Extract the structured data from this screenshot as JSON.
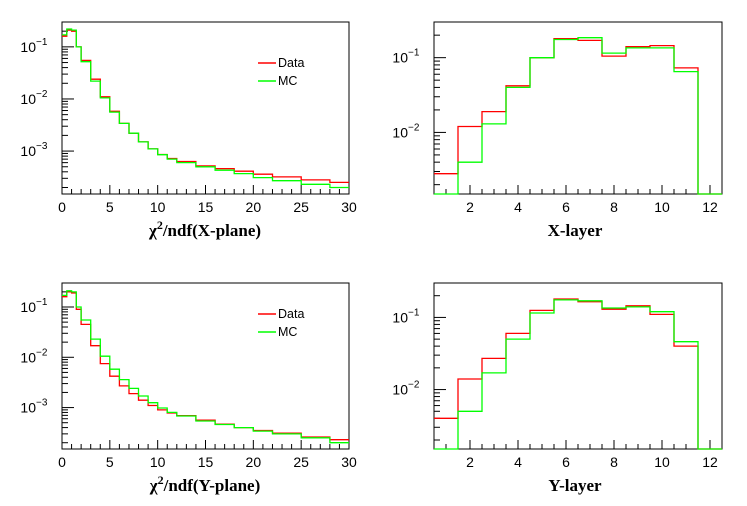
{
  "chart_data": [
    {
      "id": "chi2-x",
      "type": "line",
      "title": "",
      "xlabel": "χ²/ndf(X-plane)",
      "xlabel_base": "χ",
      "xlabel_sup": "2",
      "xlabel_rest": "/ndf(X-plane)",
      "ylabel": "",
      "yscale": "log",
      "xlim": [
        0,
        30
      ],
      "ylim": [
        0.00015,
        0.3
      ],
      "xticks": [
        0,
        5,
        10,
        15,
        20,
        25,
        30
      ],
      "yticks": [
        {
          "value": 0.1,
          "base": "10",
          "exp": "−1"
        },
        {
          "value": 0.01,
          "base": "10",
          "exp": "−2"
        },
        {
          "value": 0.001,
          "base": "10",
          "exp": "−3"
        }
      ],
      "legend": {
        "position": "top-right",
        "entries": [
          {
            "label": "Data",
            "color": "#ff0000"
          },
          {
            "label": "MC",
            "color": "#00ff00"
          }
        ]
      },
      "series": [
        {
          "name": "Data",
          "color": "#ff0000",
          "x": [
            0,
            0.5,
            1,
            1.5,
            2,
            3,
            4,
            5,
            6,
            7,
            8,
            9,
            10,
            11,
            12,
            14,
            16,
            18,
            20,
            22,
            25,
            28,
            30
          ],
          "values": [
            0.16,
            0.21,
            0.2,
            0.1,
            0.055,
            0.024,
            0.011,
            0.0058,
            0.0034,
            0.0022,
            0.0015,
            0.0011,
            0.00086,
            0.00072,
            0.00063,
            0.00052,
            0.00046,
            0.00041,
            0.00036,
            0.00032,
            0.00028,
            0.00025,
            0.00022
          ]
        },
        {
          "name": "MC",
          "color": "#00ff00",
          "x": [
            0,
            0.5,
            1,
            1.5,
            2,
            3,
            4,
            5,
            6,
            7,
            8,
            9,
            10,
            11,
            12,
            14,
            16,
            18,
            20,
            22,
            25,
            28,
            30
          ],
          "values": [
            0.17,
            0.22,
            0.21,
            0.1,
            0.052,
            0.022,
            0.0105,
            0.0056,
            0.0034,
            0.0022,
            0.0015,
            0.0011,
            0.00085,
            0.0007,
            0.0006,
            0.0005,
            0.00043,
            0.00037,
            0.00031,
            0.00027,
            0.00023,
            0.0002,
            0.00018
          ]
        }
      ]
    },
    {
      "id": "xlayer",
      "type": "line",
      "title": "",
      "xlabel": "X-layer",
      "ylabel": "",
      "yscale": "log",
      "xlim": [
        0.5,
        12.5
      ],
      "ylim": [
        0.0015,
        0.3
      ],
      "xticks": [
        2,
        4,
        6,
        8,
        10,
        12
      ],
      "yticks": [
        {
          "value": 0.1,
          "base": "10",
          "exp": "−1"
        },
        {
          "value": 0.01,
          "base": "10",
          "exp": "−2"
        }
      ],
      "series": [
        {
          "name": "Data",
          "color": "#ff0000",
          "x": [
            1,
            2,
            3,
            4,
            5,
            6,
            7,
            8,
            9,
            10,
            11,
            12
          ],
          "values": [
            0.0028,
            0.012,
            0.019,
            0.042,
            0.1,
            0.18,
            0.17,
            0.105,
            0.14,
            0.145,
            0.073,
            0
          ]
        },
        {
          "name": "MC",
          "color": "#00ff00",
          "x": [
            1,
            2,
            3,
            4,
            5,
            6,
            7,
            8,
            9,
            10,
            11,
            12
          ],
          "values": [
            0,
            0.004,
            0.013,
            0.04,
            0.1,
            0.175,
            0.185,
            0.115,
            0.135,
            0.135,
            0.065,
            0
          ]
        }
      ]
    },
    {
      "id": "chi2-y",
      "type": "line",
      "title": "",
      "xlabel": "χ²/ndf(Y-plane)",
      "xlabel_base": "χ",
      "xlabel_sup": "2",
      "xlabel_rest": "/ndf(Y-plane)",
      "ylabel": "",
      "yscale": "log",
      "xlim": [
        0,
        30
      ],
      "ylim": [
        0.00015,
        0.3
      ],
      "xticks": [
        0,
        5,
        10,
        15,
        20,
        25,
        30
      ],
      "yticks": [
        {
          "value": 0.1,
          "base": "10",
          "exp": "−1"
        },
        {
          "value": 0.01,
          "base": "10",
          "exp": "−2"
        },
        {
          "value": 0.001,
          "base": "10",
          "exp": "−3"
        }
      ],
      "legend": {
        "position": "top-right",
        "entries": [
          {
            "label": "Data",
            "color": "#ff0000"
          },
          {
            "label": "MC",
            "color": "#00ff00"
          }
        ]
      },
      "series": [
        {
          "name": "Data",
          "color": "#ff0000",
          "x": [
            0,
            0.5,
            1,
            1.5,
            2,
            3,
            4,
            5,
            6,
            7,
            8,
            9,
            10,
            11,
            12,
            14,
            16,
            18,
            20,
            22,
            25,
            28,
            30
          ],
          "values": [
            0.16,
            0.2,
            0.19,
            0.09,
            0.045,
            0.017,
            0.0075,
            0.0042,
            0.0027,
            0.0019,
            0.0014,
            0.0011,
            0.0009,
            0.00078,
            0.00069,
            0.00056,
            0.00047,
            0.0004,
            0.00035,
            0.00031,
            0.00026,
            0.00023,
            0.0002
          ]
        },
        {
          "name": "MC",
          "color": "#00ff00",
          "x": [
            0,
            0.5,
            1,
            1.5,
            2,
            3,
            4,
            5,
            6,
            7,
            8,
            9,
            10,
            11,
            12,
            14,
            16,
            18,
            20,
            22,
            25,
            28,
            30
          ],
          "values": [
            0.17,
            0.21,
            0.2,
            0.1,
            0.055,
            0.023,
            0.0105,
            0.0058,
            0.0036,
            0.0024,
            0.0017,
            0.00125,
            0.00098,
            0.0008,
            0.00068,
            0.00054,
            0.00046,
            0.0004,
            0.00034,
            0.0003,
            0.00025,
            0.0002,
            0.00018
          ]
        }
      ]
    },
    {
      "id": "ylayer",
      "type": "line",
      "title": "",
      "xlabel": "Y-layer",
      "ylabel": "",
      "yscale": "log",
      "xlim": [
        0.5,
        12.5
      ],
      "ylim": [
        0.0015,
        0.3
      ],
      "xticks": [
        2,
        4,
        6,
        8,
        10,
        12
      ],
      "yticks": [
        {
          "value": 0.1,
          "base": "10",
          "exp": "−1"
        },
        {
          "value": 0.01,
          "base": "10",
          "exp": "−2"
        }
      ],
      "series": [
        {
          "name": "Data",
          "color": "#ff0000",
          "x": [
            1,
            2,
            3,
            4,
            5,
            6,
            7,
            8,
            9,
            10,
            11,
            12
          ],
          "values": [
            0.004,
            0.014,
            0.027,
            0.06,
            0.125,
            0.18,
            0.165,
            0.13,
            0.145,
            0.11,
            0.04,
            0
          ]
        },
        {
          "name": "MC",
          "color": "#00ff00",
          "x": [
            1,
            2,
            3,
            4,
            5,
            6,
            7,
            8,
            9,
            10,
            11,
            12
          ],
          "values": [
            0,
            0.005,
            0.017,
            0.05,
            0.115,
            0.175,
            0.17,
            0.135,
            0.14,
            0.12,
            0.046,
            0
          ]
        }
      ]
    }
  ]
}
